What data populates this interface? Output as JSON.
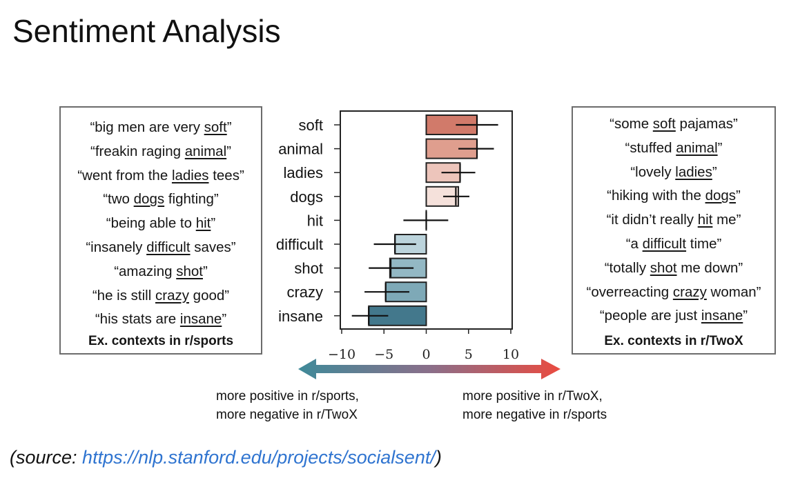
{
  "title": "Sentiment Analysis",
  "left_box": {
    "label": "Ex. contexts in r/sports",
    "contexts": [
      {
        "pre": "“big men are very ",
        "word": "soft",
        "post": "”"
      },
      {
        "pre": "“freakin raging ",
        "word": "animal",
        "post": "”"
      },
      {
        "pre": "“went from the ",
        "word": "ladies",
        "post": " tees”"
      },
      {
        "pre": "“two ",
        "word": "dogs",
        "post": " fighting”"
      },
      {
        "pre": "“being able to ",
        "word": "hit",
        "post": "”"
      },
      {
        "pre": "“insanely ",
        "word": "difficult",
        "post": " saves”"
      },
      {
        "pre": "“amazing ",
        "word": "shot",
        "post": "”"
      },
      {
        "pre": "“he is still ",
        "word": "crazy",
        "post": " good”"
      },
      {
        "pre": "“his stats are ",
        "word": "insane",
        "post": "”"
      }
    ]
  },
  "right_box": {
    "label": "Ex. contexts in r/TwoX",
    "contexts": [
      {
        "pre": "“some ",
        "word": "soft",
        "post": " pajamas”"
      },
      {
        "pre": "“stuffed ",
        "word": "animal",
        "post": "”"
      },
      {
        "pre": "“lovely ",
        "word": "ladies",
        "post": "”"
      },
      {
        "pre": "“hiking with the ",
        "word": "dogs",
        "post": "”"
      },
      {
        "pre": "“it didn’t really ",
        "word": "hit",
        "post": " me”"
      },
      {
        "pre": "“a ",
        "word": "difficult",
        "post": " time”"
      },
      {
        "pre": "“totally ",
        "word": "shot",
        "post": " me down”"
      },
      {
        "pre": "“overreacting ",
        "word": "crazy",
        "post": " woman”"
      },
      {
        "pre": "“people are just ",
        "word": "insane",
        "post": "”"
      }
    ]
  },
  "chart_data": {
    "type": "bar",
    "orientation": "horizontal",
    "categories": [
      "soft",
      "animal",
      "ladies",
      "dogs",
      "hit",
      "difficult",
      "shot",
      "crazy",
      "insane"
    ],
    "values": [
      6,
      6,
      4,
      3.8,
      0,
      -3.7,
      -4.3,
      -4.8,
      -6.8
    ],
    "error_centers": [
      6,
      6,
      4,
      3.5,
      0,
      -3.7,
      -4.2,
      -4.8,
      -6.8
    ],
    "error_low": [
      3.5,
      3.8,
      1.8,
      2.0,
      -2.7,
      -6.2,
      -6.8,
      -7.3,
      -8.8
    ],
    "error_high": [
      8.5,
      8.0,
      5.8,
      5.1,
      2.6,
      -1.2,
      -1.5,
      -2.0,
      -4.5
    ],
    "xlim": [
      -10,
      10
    ],
    "xticks": [
      "−10",
      "−5",
      "0",
      "5",
      "10"
    ],
    "xtick_values": [
      -10,
      -5,
      0,
      5,
      10
    ],
    "colors": [
      "#d17a6a",
      "#df9e8e",
      "#edc5bb",
      "#f5e1db",
      "#f0f0f0",
      "#bcd4dc",
      "#93b8c4",
      "#7ea9b7",
      "#43788c"
    ]
  },
  "arrow": {
    "left_color": "#3f8a99",
    "right_color": "#ea4b40"
  },
  "explain_left": [
    "more positive in r/sports,",
    "more negative in r/TwoX"
  ],
  "explain_right": [
    "more positive in r/TwoX,",
    "more negative in r/sports"
  ],
  "source": {
    "prefix": "(source: ",
    "link": "https://nlp.stanford.edu/projects/socialsent/",
    "suffix": ")"
  }
}
